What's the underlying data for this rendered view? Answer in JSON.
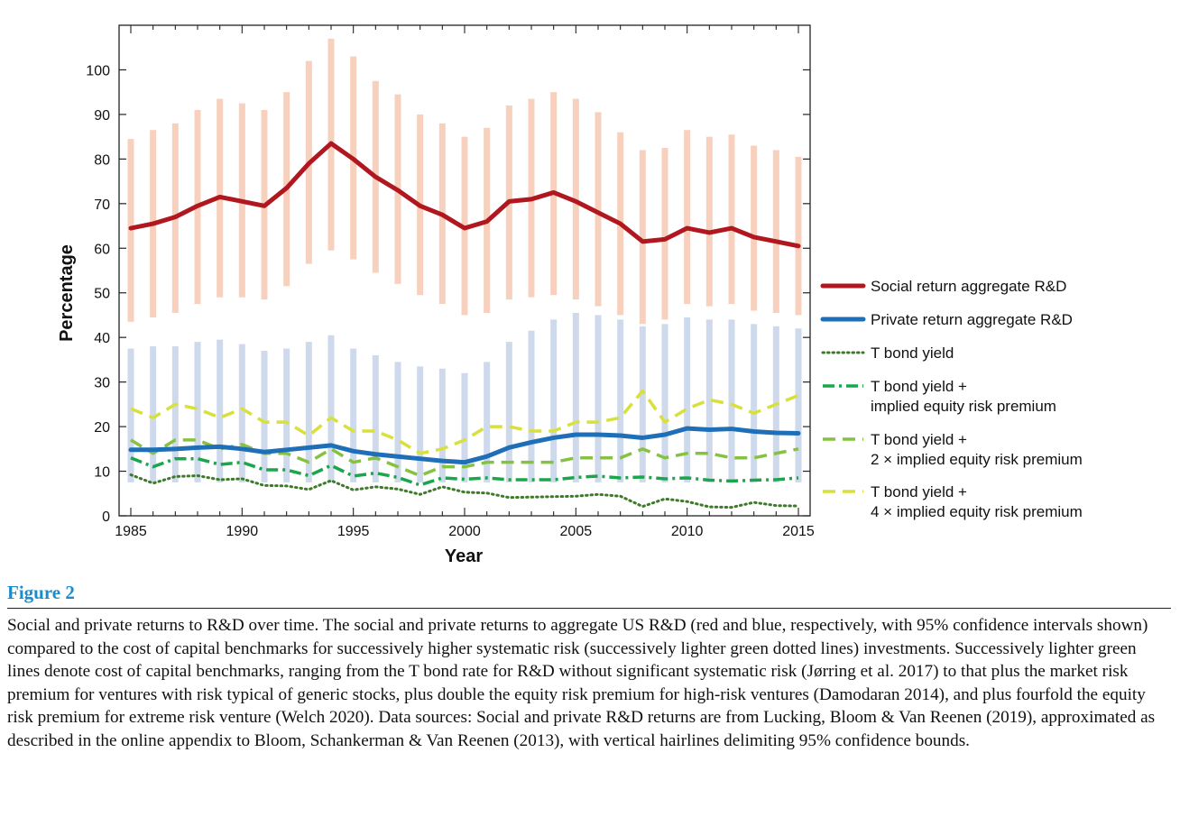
{
  "chart_data": {
    "type": "line",
    "xlabel": "Year",
    "ylabel": "Percentage",
    "xlim": [
      1985,
      2015
    ],
    "ylim": [
      0,
      110
    ],
    "x_ticks": [
      1985,
      1990,
      1995,
      2000,
      2005,
      2010,
      2015
    ],
    "y_ticks": [
      0,
      10,
      20,
      30,
      40,
      50,
      60,
      70,
      80,
      90,
      100
    ],
    "grid": false,
    "legend_position": "right",
    "x": [
      1985,
      1986,
      1987,
      1988,
      1989,
      1990,
      1991,
      1992,
      1993,
      1994,
      1995,
      1996,
      1997,
      1998,
      1999,
      2000,
      2001,
      2002,
      2003,
      2004,
      2005,
      2006,
      2007,
      2008,
      2009,
      2010,
      2011,
      2012,
      2013,
      2014,
      2015
    ],
    "series": [
      {
        "name": "Social return aggregate R&D",
        "color": "#b0171f",
        "style": "solid-thick",
        "values": [
          64.5,
          65.5,
          67,
          69.5,
          71.5,
          70.5,
          69.5,
          73.5,
          79,
          83.5,
          80,
          76,
          73,
          69.5,
          67.5,
          64.5,
          66,
          70.5,
          71,
          72.5,
          70.5,
          68,
          65.5,
          61.5,
          62,
          64.5,
          63.5,
          64.5,
          62.5,
          61.5,
          60.5
        ],
        "ci_low": [
          43.5,
          44.5,
          45.5,
          47.5,
          49,
          49,
          48.5,
          51.5,
          56.5,
          59.5,
          57.5,
          54.5,
          52,
          49.5,
          47.5,
          45,
          45.5,
          48.5,
          49,
          49.5,
          48.5,
          47,
          45,
          43,
          44,
          47.5,
          47,
          47.5,
          46,
          45.5,
          45
        ],
        "ci_high": [
          84.5,
          86.5,
          88,
          91,
          93.5,
          92.5,
          91,
          95,
          102,
          107,
          103,
          97.5,
          94.5,
          90,
          88,
          85,
          87,
          92,
          93.5,
          95,
          93.5,
          90.5,
          86,
          82,
          82.5,
          86.5,
          85,
          85.5,
          83,
          82,
          80.5
        ]
      },
      {
        "name": "Private return aggregate R&D",
        "color": "#1f6fb8",
        "style": "solid-thick",
        "values": [
          14.8,
          14.8,
          15,
          15.3,
          15.5,
          15,
          14.3,
          14.8,
          15.3,
          15.8,
          14.5,
          13.8,
          13.3,
          12.8,
          12.3,
          12,
          13.3,
          15.3,
          16.5,
          17.5,
          18.2,
          18.2,
          18,
          17.5,
          18.2,
          19.6,
          19.3,
          19.5,
          18.9,
          18.6,
          18.5
        ],
        "ci_low": [
          7.5,
          7.5,
          7.5,
          7.5,
          7.5,
          7.5,
          7.5,
          7.5,
          7.5,
          7.5,
          7.5,
          7.5,
          7.5,
          7.5,
          7.5,
          7.5,
          7.5,
          7.5,
          7.5,
          7.5,
          7.5,
          7.5,
          7.5,
          7.5,
          7.5,
          7.5,
          7.5,
          7.5,
          7.5,
          7.5,
          7.5
        ],
        "ci_high": [
          37.5,
          38,
          38,
          39,
          39.5,
          38.5,
          37,
          37.5,
          39,
          40.5,
          37.5,
          36,
          34.5,
          33.5,
          33,
          32,
          34.5,
          39,
          41.5,
          44,
          45.5,
          45,
          44,
          42.5,
          43,
          44.5,
          44,
          44,
          43,
          42.5,
          42
        ]
      },
      {
        "name": "T bond yield",
        "color": "#3d7a2a",
        "style": "dotted",
        "values": [
          9.2,
          7.3,
          8.8,
          9,
          8.1,
          8.3,
          6.8,
          6.7,
          5.9,
          7.9,
          5.8,
          6.5,
          6,
          4.8,
          6.5,
          5.3,
          5.1,
          4.1,
          4.2,
          4.3,
          4.4,
          4.8,
          4.4,
          2.1,
          3.8,
          3.2,
          2,
          1.9,
          3,
          2.3,
          2.2
        ]
      },
      {
        "name": "T bond yield +\nimplied equity risk premium",
        "color": "#1aa64a",
        "style": "dash-dot",
        "values": [
          13,
          11,
          12.8,
          12.8,
          11.5,
          12,
          10.3,
          10.3,
          9,
          11.3,
          8.9,
          9.6,
          8.6,
          6.9,
          8.5,
          8.2,
          8.5,
          8.1,
          8.1,
          8.1,
          8.6,
          8.9,
          8.5,
          8.7,
          8.3,
          8.5,
          8,
          7.8,
          8,
          8.1,
          8.5
        ]
      },
      {
        "name": "T bond yield +\n2 × implied equity risk premium",
        "color": "#86c241",
        "style": "dashed",
        "values": [
          17,
          14,
          17,
          17,
          15,
          16,
          14,
          14,
          12,
          15,
          12,
          13,
          11,
          9,
          11,
          11,
          12,
          12,
          12,
          12,
          13,
          13,
          13,
          15,
          13,
          14,
          14,
          13,
          13,
          14,
          15
        ]
      },
      {
        "name": "T bond yield +\n4 × implied equity risk premium",
        "color": "#d8e03c",
        "style": "dashed",
        "values": [
          24,
          22,
          25,
          24,
          22,
          24,
          21,
          21,
          18,
          22,
          19,
          19,
          17,
          14,
          15,
          17,
          20,
          20,
          19,
          19,
          21,
          21,
          22,
          28,
          21,
          24,
          26,
          25,
          23,
          25,
          27
        ]
      }
    ]
  },
  "caption": {
    "label": "Figure 2",
    "text": "Social and private returns to R&D over time. The social and private returns to aggregate US R&D (red and blue, respectively, with 95% confidence intervals shown) compared to the cost of capital benchmarks for successively higher systematic risk (successively lighter green dotted lines) investments. Successively lighter green lines denote cost of capital benchmarks, ranging from the T bond rate for R&D without significant systematic risk (Jørring et al. 2017) to that plus the market risk premium for ventures with risk typical of generic stocks, plus double the equity risk premium for high-risk ventures (Damodaran 2014), and plus fourfold the equity risk premium for extreme risk venture (Welch 2020). Data sources: Social and private R&D returns are from Lucking, Bloom & Van Reenen (2019), approximated as described in the online appendix to Bloom, Schankerman & Van Reenen (2013), with vertical hairlines delimiting 95% confidence bounds."
  }
}
